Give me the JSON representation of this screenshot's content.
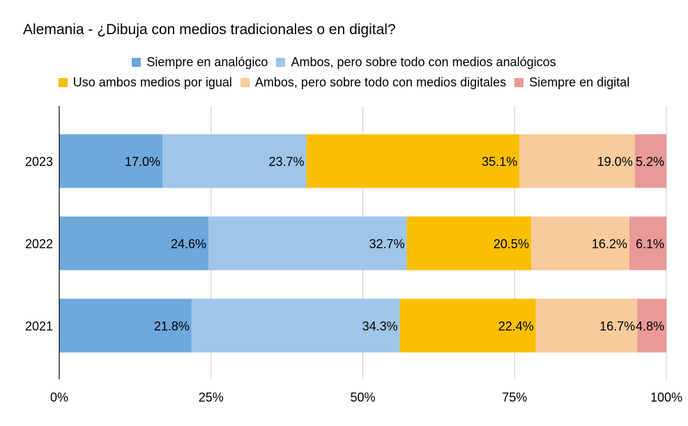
{
  "chart_data": {
    "type": "bar",
    "orientation": "horizontal",
    "stacked": "100%",
    "title": "Alemania - ¿Dibuja con medios tradicionales o en digital?",
    "categories": [
      "2023",
      "2022",
      "2021"
    ],
    "series": [
      {
        "name": "Siempre en analógico",
        "color": "#6fa8dc",
        "values": [
          17.0,
          24.6,
          21.8
        ],
        "labels": [
          "17.0%",
          "24.6%",
          "21.8%"
        ]
      },
      {
        "name": "Ambos, pero sobre todo con medios analógicos",
        "color": "#9fc5e8",
        "values": [
          23.7,
          32.7,
          34.3
        ],
        "labels": [
          "23.7%",
          "32.7%",
          "34.3%"
        ]
      },
      {
        "name": "Uso ambos medios por igual",
        "color": "#f9bf00",
        "values": [
          35.1,
          20.5,
          22.4
        ],
        "labels": [
          "35.1%",
          "20.5%",
          "22.4%"
        ]
      },
      {
        "name": "Ambos, pero sobre todo con medios digitales",
        "color": "#f8cb9c",
        "values": [
          19.0,
          16.2,
          16.7
        ],
        "labels": [
          "19.0%",
          "16.2%",
          "16.7%"
        ]
      },
      {
        "name": "Siempre en digital",
        "color": "#ea9999",
        "values": [
          5.2,
          6.1,
          4.8
        ],
        "labels": [
          "5.2%",
          "6.1%",
          "4.8%"
        ]
      }
    ],
    "xlim": [
      0,
      100
    ],
    "x_ticks": [
      "0%",
      "25%",
      "50%",
      "75%",
      "100%"
    ],
    "grid": true,
    "legend_position": "top"
  }
}
